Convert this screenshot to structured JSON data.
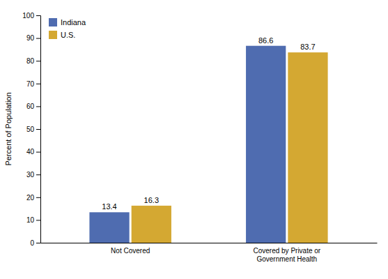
{
  "chart_data": {
    "type": "bar",
    "categories": [
      "Not Covered",
      "Covered by Private or\nGovernment Health"
    ],
    "series": [
      {
        "name": "Indiana",
        "color": "#4F6CB0",
        "values": [
          13.4,
          86.6
        ]
      },
      {
        "name": "U.S.",
        "color": "#D4A832",
        "values": [
          16.3,
          83.7
        ]
      }
    ],
    "ylabel": "Percent of Population",
    "ylim": [
      0,
      100
    ],
    "yticks": [
      0,
      10,
      20,
      30,
      40,
      50,
      60,
      70,
      80,
      90,
      100
    ],
    "grid": false,
    "legend": "upper left",
    "data_labels": true
  }
}
